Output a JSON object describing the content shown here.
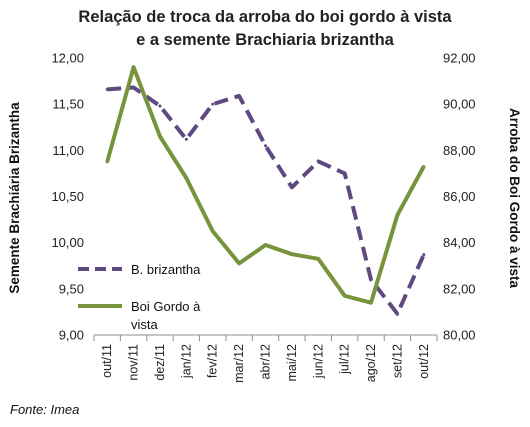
{
  "chart_data": {
    "type": "line",
    "title_lines": [
      "Relação de troca da arroba do boi gordo à vista",
      "e a semente Brachiaria brizantha"
    ],
    "categories": [
      "out/11",
      "nov/11",
      "dez/11",
      "jan/12",
      "fev/12",
      "mar/12",
      "abr/12",
      "mai/12",
      "jun/12",
      "jul/12",
      "ago/12",
      "set/12",
      "out/12"
    ],
    "ylabel_left": "Semente Brachiária Brizantha",
    "ylabel_right": "Arroba do Boi Gordo à vista",
    "y_left": {
      "min": 9.0,
      "max": 12.0,
      "step": 0.5,
      "ticks": [
        "9,00",
        "9,50",
        "10,00",
        "10,50",
        "11,00",
        "11,50",
        "12,00"
      ]
    },
    "y_right": {
      "min": 80.0,
      "max": 92.0,
      "step": 2.0,
      "ticks": [
        "80,00",
        "82,00",
        "84,00",
        "86,00",
        "88,00",
        "90,00",
        "92,00"
      ]
    },
    "series": [
      {
        "name": "B. brizantha",
        "axis": "left",
        "color": "#5e4a80",
        "style": "dashed",
        "values": [
          11.66,
          11.68,
          11.48,
          11.12,
          11.5,
          11.59,
          11.05,
          10.6,
          10.88,
          10.75,
          9.6,
          9.23,
          9.87
        ]
      },
      {
        "name": "Boi Gordo à vista",
        "name_lines": [
          "Boi Gordo à",
          "vista"
        ],
        "axis": "right",
        "color": "#77933c",
        "style": "solid",
        "values": [
          87.5,
          91.6,
          88.6,
          86.8,
          84.5,
          83.1,
          83.9,
          83.5,
          83.3,
          81.7,
          81.4,
          85.2,
          87.3
        ]
      }
    ],
    "legend_position": "bottom-left",
    "grid": false
  },
  "source": "Fonte: Imea"
}
